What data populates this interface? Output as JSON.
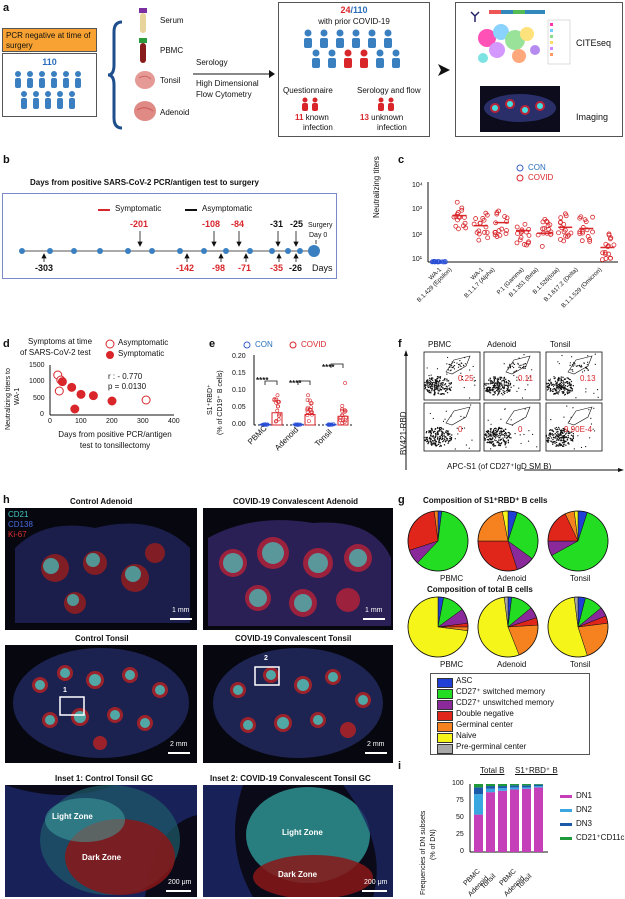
{
  "panels": {
    "a": "a",
    "b": "b",
    "c": "c",
    "d": "d",
    "e": "e",
    "f": "f",
    "g": "g",
    "h": "h",
    "i": "i"
  },
  "panel_a": {
    "pcr_banner": "PCR negative at time of surgery",
    "cohort_count": "110",
    "tissues": [
      "Serum",
      "PBMC",
      "Tonsil",
      "Adenoid"
    ],
    "methods": [
      "Serology",
      "High Dimensional",
      "Flow Cytometry"
    ],
    "prior_pos": "24",
    "prior_total": "/110",
    "prior_text": "with prior COVID-19",
    "questionnaire": "Questionnaire",
    "serology_flow": "Serology and flow",
    "known_n": "11",
    "known_text": "known",
    "known_text2": "infection",
    "unknown_n": "13",
    "unknown_text": "unknown",
    "unknown_text2": "infection",
    "citeseq": "CITEseq",
    "imaging": "Imaging"
  },
  "panel_b": {
    "title": "Days from positive SARS-CoV-2 PCR/antigen test to surgery",
    "legend_sym": "Symptomatic",
    "legend_asym": "Asymptomatic",
    "surgery": "Surgery",
    "day0": "Day 0",
    "days": "Days",
    "above_labels": [
      "-201",
      "-108",
      "-84",
      "-31",
      "-25"
    ],
    "below_labels": [
      "-303",
      "-142",
      "-98",
      "-71",
      "-35",
      "-26"
    ]
  },
  "panel_c": {
    "legend_con": "CON",
    "legend_covid": "COVID",
    "ylabel": "Neutralizing titers",
    "yticks": [
      "10⁴",
      "10³",
      "10²",
      "10¹"
    ],
    "categories": [
      "WA-1",
      "B.1.429 (Epsilon)",
      "WA-1",
      "B.1.1.7 (Alpha)",
      "P.1 (Gamma)",
      "B.1.351 (Beta)",
      "B.1.526(Iota)",
      "B.1.617.2 (Delta)",
      "B.1.1.529 (Omicron)"
    ]
  },
  "panel_d": {
    "title1": "Symptoms at time",
    "title2": "of SARS-CoV-2 test",
    "legend_asym": "Asymptomatic",
    "legend_sym": "Symptomatic",
    "r": "r : - 0.770",
    "p": "p = 0.0130",
    "ylabel1": "Neutralizing titers to",
    "ylabel2": "WA-1",
    "xlabel1": "Days from positive PCR/antigen",
    "xlabel2": "test to tonsillectomy",
    "xticks": [
      "0",
      "100",
      "200",
      "300",
      "400"
    ],
    "yticks": [
      "1500",
      "1000",
      "500",
      "0"
    ]
  },
  "panel_e": {
    "legend_con": "CON",
    "legend_covid": "COVID",
    "ylabel1": "S1⁺RBD⁺",
    "ylabel2": "(% of CD19⁺ B cells)",
    "yticks": [
      "0.20",
      "0.15",
      "0.10",
      "0.05",
      "0.00"
    ],
    "categories": [
      "PBMC",
      "Adenoid",
      "Tonsil"
    ],
    "sig": "****"
  },
  "panel_f": {
    "columns": [
      "PBMC",
      "Adenoid",
      "Tonsil"
    ],
    "top_values": [
      "0.25",
      "0.11",
      "0.13"
    ],
    "bottom_values": [
      "0",
      "0",
      "9.90E-4"
    ],
    "ylabel": "BV421-RBD",
    "xlabel": "APC-S1 (of CD27⁺IgD SM B)"
  },
  "panel_g": {
    "title1": "Composition of S1⁺RBD⁺ B cells",
    "title2": "Composition of total B cells",
    "pie_labels": [
      "PBMC",
      "Adenoid",
      "Tonsil"
    ],
    "legend": [
      {
        "label": "ASC",
        "color": "#1f3fd6"
      },
      {
        "label": "CD27⁺ switched memory",
        "color": "#22dd22"
      },
      {
        "label": "CD27⁺ unswitched memory",
        "color": "#8a2a9a"
      },
      {
        "label": "Double negative",
        "color": "#e0261b"
      },
      {
        "label": "Germinal center",
        "color": "#f5821f"
      },
      {
        "label": "Naive",
        "color": "#f5f51a"
      },
      {
        "label": "Pre-germinal center",
        "color": "#a8a8a8"
      }
    ]
  },
  "panel_h": {
    "stain_cd21": "CD21",
    "stain_cd138": "CD138",
    "stain_ki67": "Ki-67",
    "titles": [
      "Control Adenoid",
      "COVID-19 Convalescent Adenoid",
      "Control Tonsil",
      "COVID-19 Convalescent Tonsil",
      "Inset 1: Control Tonsil GC",
      "Inset 2: COVID-19 Convalescent Tonsil GC"
    ],
    "scale_1mm": "1 mm",
    "scale_2mm": "2 mm",
    "scale_200": "200 μm",
    "inset1": "1",
    "inset2": "2",
    "light_zone": "Light Zone",
    "dark_zone": "Dark Zone"
  },
  "panel_i": {
    "group1": "Total B",
    "group2": "S1⁺RBD⁺ B",
    "ylabel1": "Frequencies of DN subsets",
    "ylabel2": "(% of DN)",
    "yticks": [
      "100",
      "75",
      "50",
      "25",
      "0"
    ],
    "categories": [
      "PBMC",
      "Adenoid",
      "Tonsil",
      "PBMC",
      "Adenoid",
      "Tonsil"
    ],
    "legend": [
      {
        "label": "DN1",
        "color": "#c43fb8"
      },
      {
        "label": "DN2",
        "color": "#3aa7e0"
      },
      {
        "label": "DN3",
        "color": "#1b5aa8"
      },
      {
        "label": "CD21⁺CD11c⁺",
        "color": "#1f9a3a"
      }
    ]
  },
  "chart_data": [
    {
      "type": "scatter",
      "title": "",
      "ylabel": "Neutralizing titers",
      "yscale": "log",
      "categories": [
        "WA-1",
        "B.1.429 (Epsilon)",
        "WA-1",
        "B.1.1.7 (Alpha)",
        "P.1 (Gamma)",
        "B.1.351 (Beta)",
        "B.1.526(Iota)",
        "B.1.617.2 (Delta)",
        "B.1.1.529 (Omicron)"
      ],
      "series": [
        {
          "name": "CON",
          "medians": [
            10,
            null,
            null,
            null,
            null,
            null,
            null,
            null,
            null
          ]
        },
        {
          "name": "COVID",
          "medians": [
            null,
            550,
            230,
            300,
            150,
            120,
            200,
            180,
            35
          ]
        }
      ]
    },
    {
      "type": "scatter",
      "xlabel": "Days from positive PCR/antigen test to tonsillectomy",
      "ylabel": "Neutralizing titers to WA-1",
      "xlim": [
        0,
        400
      ],
      "ylim": [
        0,
        1500
      ],
      "series": [
        {
          "name": "Asymptomatic",
          "x": [
            25,
            35,
            30,
            310
          ],
          "y": [
            1200,
            1050,
            720,
            450
          ]
        },
        {
          "name": "Symptomatic",
          "x": [
            40,
            70,
            100,
            140,
            200,
            80
          ],
          "y": [
            1000,
            830,
            620,
            580,
            420,
            180
          ]
        }
      ]
    },
    {
      "type": "bar",
      "ylabel": "S1⁺RBD⁺ (% of CD19⁺ B cells)",
      "ylim": [
        0,
        0.2
      ],
      "categories": [
        "PBMC",
        "Adenoid",
        "Tonsil"
      ],
      "series": [
        {
          "name": "CON",
          "values": [
            0.002,
            0.002,
            0.002
          ]
        },
        {
          "name": "COVID",
          "values": [
            0.035,
            0.03,
            0.025
          ]
        }
      ]
    },
    {
      "type": "bar",
      "ylabel": "Frequencies of DN subsets (% of DN)",
      "ylim": [
        0,
        100
      ],
      "categories": [
        "PBMC",
        "Adenoid",
        "Tonsil",
        "PBMC",
        "Adenoid",
        "Tonsil"
      ],
      "series": [
        {
          "name": "DN1",
          "values": [
            55,
            88,
            90,
            92,
            93,
            95
          ]
        },
        {
          "name": "DN2",
          "values": [
            30,
            5,
            4,
            3,
            2,
            2
          ]
        },
        {
          "name": "DN3",
          "values": [
            10,
            4,
            3,
            3,
            3,
            2
          ]
        },
        {
          "name": "CD21⁺CD11c⁺",
          "values": [
            5,
            3,
            3,
            2,
            2,
            1
          ]
        }
      ]
    }
  ]
}
